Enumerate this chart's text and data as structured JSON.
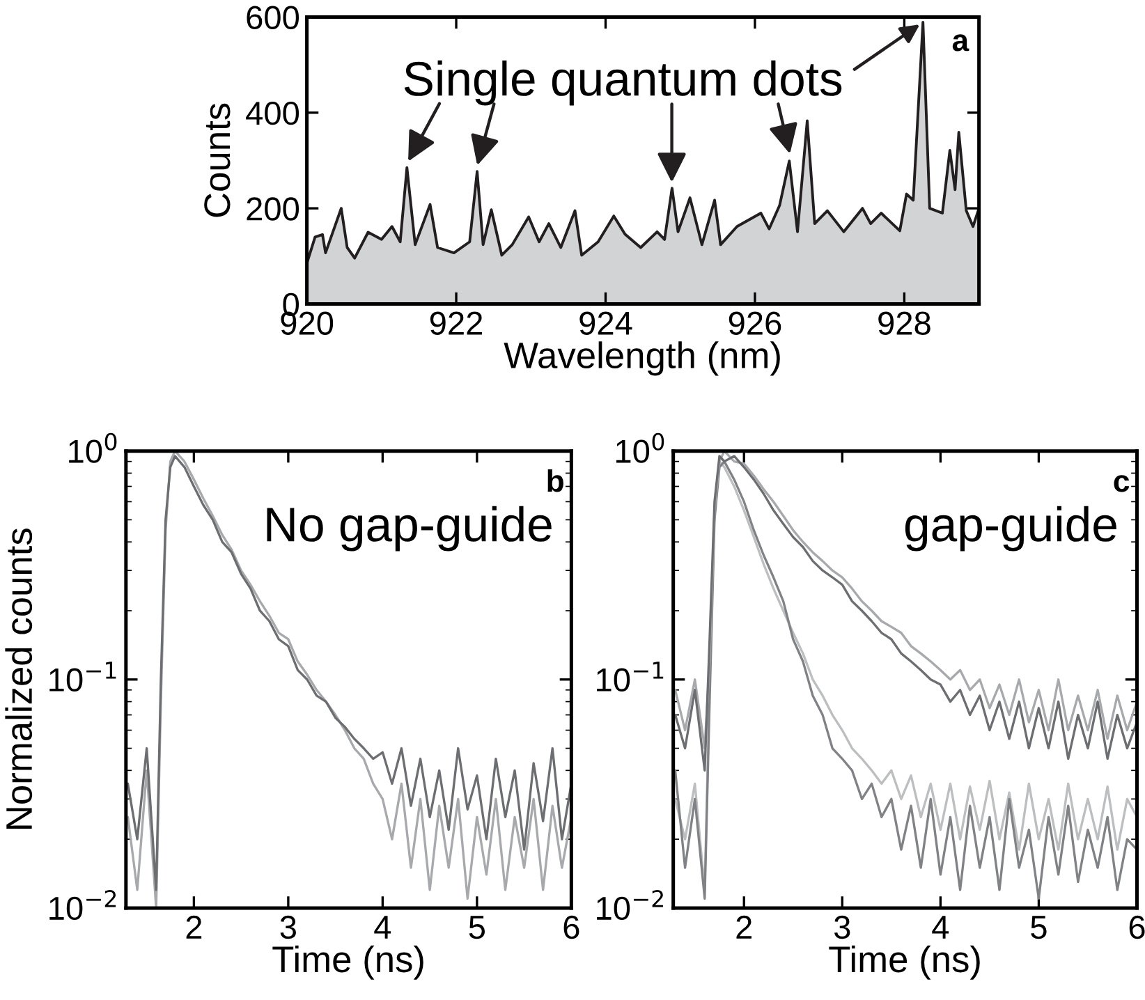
{
  "chart_data": [
    {
      "type": "area",
      "xlabel": "Wavelength (nm)",
      "ylabel": "Counts",
      "xlim": [
        920,
        929
      ],
      "ylim": [
        0,
        600
      ],
      "xticks": [
        920,
        922,
        924,
        926,
        928
      ],
      "yticks": [
        0,
        200,
        400,
        600
      ],
      "x": [
        920.0,
        920.11,
        920.21,
        920.25,
        920.46,
        920.54,
        920.64,
        920.82,
        921.0,
        921.14,
        921.25,
        921.34,
        921.45,
        921.65,
        921.75,
        921.97,
        922.18,
        922.28,
        922.36,
        922.47,
        922.61,
        922.75,
        922.97,
        923.11,
        923.24,
        923.4,
        923.59,
        923.68,
        923.9,
        924.11,
        924.26,
        924.47,
        924.69,
        924.79,
        924.89,
        924.97,
        925.13,
        925.29,
        925.46,
        925.54,
        925.76,
        926.08,
        926.19,
        926.33,
        926.46,
        926.57,
        926.7,
        926.8,
        926.97,
        927.19,
        927.44,
        927.55,
        927.69,
        927.94,
        928.03,
        928.12,
        928.25,
        928.34,
        928.51,
        928.61,
        928.68,
        928.73,
        928.83,
        928.92,
        929.0
      ],
      "series": [
        {
          "color": "#d1d3d4",
          "values": [
            85,
            140,
            145,
            107,
            200,
            118,
            96,
            150,
            135,
            162,
            130,
            285,
            124,
            208,
            118,
            107,
            130,
            277,
            124,
            197,
            102,
            124,
            182,
            130,
            168,
            118,
            195,
            102,
            130,
            184,
            146,
            118,
            151,
            135,
            242,
            151,
            222,
            124,
            217,
            124,
            162,
            190,
            157,
            206,
            299,
            151,
            383,
            168,
            195,
            151,
            200,
            168,
            190,
            153,
            230,
            217,
            589,
            200,
            190,
            321,
            239,
            359,
            195,
            162,
            200
          ]
        }
      ],
      "annotations": [
        {
          "text": "Single quantum dots",
          "x": 928.25,
          "y": 589
        },
        "a"
      ]
    },
    {
      "type": "line",
      "xlabel": "Time (ns)",
      "ylabel": "Normalized counts",
      "log": true,
      "xlim": [
        1.28,
        6
      ],
      "ylim": [
        0.01,
        1
      ],
      "xticks": [
        2,
        3,
        4,
        5,
        6
      ],
      "yticks": [
        {
          "value": 1,
          "label": "10$^{0}$"
        },
        {
          "value": 0.1,
          "label": "10$^{−1}$"
        },
        {
          "value": 0.01,
          "label": "10$^{−2}$"
        }
      ],
      "x": [
        1.3,
        1.4,
        1.5,
        1.6,
        1.65,
        1.7,
        1.75,
        1.8,
        1.9,
        2.0,
        2.1,
        2.2,
        2.3,
        2.4,
        2.5,
        2.6,
        2.7,
        2.8,
        2.9,
        3.0,
        3.1,
        3.2,
        3.3,
        3.4,
        3.5,
        3.6,
        3.7,
        3.8,
        3.9,
        4.0,
        4.1,
        4.2,
        4.3,
        4.4,
        4.5,
        4.6,
        4.7,
        4.8,
        4.9,
        5.0,
        5.1,
        5.2,
        5.3,
        5.4,
        5.5,
        5.6,
        5.7,
        5.8,
        5.9,
        6.0
      ],
      "series": [
        {
          "color": "#a7a9ac",
          "values": [
            0.025,
            0.012,
            0.04,
            0.01,
            0.08,
            0.45,
            0.9,
            1.0,
            0.9,
            0.75,
            0.62,
            0.52,
            0.43,
            0.37,
            0.3,
            0.26,
            0.22,
            0.19,
            0.16,
            0.15,
            0.12,
            0.105,
            0.09,
            0.08,
            0.07,
            0.06,
            0.05,
            0.045,
            0.035,
            0.03,
            0.02,
            0.035,
            0.015,
            0.03,
            0.012,
            0.028,
            0.015,
            0.03,
            0.011,
            0.025,
            0.014,
            0.03,
            0.012,
            0.025,
            0.015,
            0.03,
            0.012,
            0.028,
            0.015,
            0.025
          ]
        },
        {
          "color": "#6d6e71",
          "values": [
            0.035,
            0.02,
            0.05,
            0.012,
            0.1,
            0.5,
            0.85,
            0.95,
            0.85,
            0.7,
            0.58,
            0.5,
            0.4,
            0.36,
            0.29,
            0.25,
            0.2,
            0.18,
            0.15,
            0.14,
            0.11,
            0.1,
            0.085,
            0.08,
            0.068,
            0.062,
            0.055,
            0.05,
            0.045,
            0.048,
            0.035,
            0.05,
            0.028,
            0.045,
            0.025,
            0.04,
            0.022,
            0.05,
            0.027,
            0.038,
            0.02,
            0.045,
            0.025,
            0.04,
            0.018,
            0.043,
            0.024,
            0.05,
            0.02,
            0.035
          ]
        }
      ],
      "annotations": [
        "b",
        "No gap-guide"
      ]
    },
    {
      "type": "line",
      "xlabel": "Time (ns)",
      "log": true,
      "xlim": [
        1.28,
        6
      ],
      "ylim": [
        0.01,
        1
      ],
      "xticks": [
        2,
        3,
        4,
        5,
        6
      ],
      "yticks": [
        {
          "value": 1,
          "label": "10$^{0}$"
        },
        {
          "value": 0.1,
          "label": "10$^{−1}$"
        },
        {
          "value": 0.01,
          "label": "10$^{−2}$"
        }
      ],
      "x": [
        1.3,
        1.4,
        1.5,
        1.6,
        1.65,
        1.7,
        1.75,
        1.8,
        1.9,
        2.0,
        2.1,
        2.2,
        2.3,
        2.4,
        2.5,
        2.6,
        2.7,
        2.8,
        2.9,
        3.0,
        3.1,
        3.2,
        3.3,
        3.4,
        3.5,
        3.6,
        3.7,
        3.8,
        3.9,
        4.0,
        4.1,
        4.2,
        4.3,
        4.4,
        4.5,
        4.6,
        4.7,
        4.8,
        4.9,
        5.0,
        5.1,
        5.2,
        5.3,
        5.4,
        5.5,
        5.6,
        5.7,
        5.8,
        5.9,
        6.0
      ],
      "series": [
        {
          "color": "#bcbec0",
          "values": [
            0.03,
            0.02,
            0.035,
            0.012,
            0.1,
            0.55,
            0.9,
            0.85,
            0.7,
            0.55,
            0.42,
            0.32,
            0.25,
            0.2,
            0.16,
            0.13,
            0.1,
            0.085,
            0.07,
            0.06,
            0.05,
            0.045,
            0.04,
            0.035,
            0.04,
            0.03,
            0.038,
            0.025,
            0.035,
            0.022,
            0.035,
            0.02,
            0.034,
            0.022,
            0.036,
            0.02,
            0.032,
            0.018,
            0.035,
            0.02,
            0.03,
            0.018,
            0.035,
            0.02,
            0.03,
            0.02,
            0.034,
            0.018,
            0.03,
            0.025
          ]
        },
        {
          "color": "#808285",
          "values": [
            0.04,
            0.015,
            0.03,
            0.011,
            0.08,
            0.5,
            0.85,
            0.9,
            0.75,
            0.6,
            0.45,
            0.35,
            0.28,
            0.22,
            0.15,
            0.12,
            0.085,
            0.07,
            0.05,
            0.045,
            0.04,
            0.03,
            0.035,
            0.025,
            0.03,
            0.018,
            0.028,
            0.015,
            0.03,
            0.014,
            0.025,
            0.012,
            0.028,
            0.015,
            0.025,
            0.012,
            0.03,
            0.015,
            0.022,
            0.011,
            0.025,
            0.014,
            0.028,
            0.013,
            0.022,
            0.015,
            0.025,
            0.012,
            0.02,
            0.018
          ]
        },
        {
          "color": "#a7a9ac",
          "values": [
            0.09,
            0.06,
            0.1,
            0.05,
            0.12,
            0.55,
            0.9,
            1.0,
            0.9,
            0.88,
            0.78,
            0.68,
            0.6,
            0.52,
            0.45,
            0.4,
            0.36,
            0.33,
            0.3,
            0.28,
            0.25,
            0.22,
            0.2,
            0.18,
            0.17,
            0.16,
            0.14,
            0.13,
            0.12,
            0.11,
            0.1,
            0.11,
            0.09,
            0.1,
            0.075,
            0.095,
            0.07,
            0.1,
            0.065,
            0.09,
            0.06,
            0.1,
            0.06,
            0.085,
            0.06,
            0.09,
            0.055,
            0.085,
            0.06,
            0.08
          ]
        },
        {
          "color": "#6d6e71",
          "values": [
            0.07,
            0.05,
            0.09,
            0.04,
            0.15,
            0.6,
            0.95,
            0.9,
            0.95,
            0.85,
            0.75,
            0.65,
            0.55,
            0.48,
            0.42,
            0.38,
            0.33,
            0.3,
            0.28,
            0.26,
            0.22,
            0.2,
            0.18,
            0.16,
            0.15,
            0.13,
            0.12,
            0.11,
            0.1,
            0.095,
            0.08,
            0.09,
            0.07,
            0.085,
            0.06,
            0.08,
            0.055,
            0.08,
            0.05,
            0.075,
            0.05,
            0.08,
            0.045,
            0.07,
            0.05,
            0.08,
            0.045,
            0.07,
            0.05,
            0.065
          ]
        }
      ],
      "annotations": [
        "c",
        "gap-guide"
      ]
    }
  ]
}
